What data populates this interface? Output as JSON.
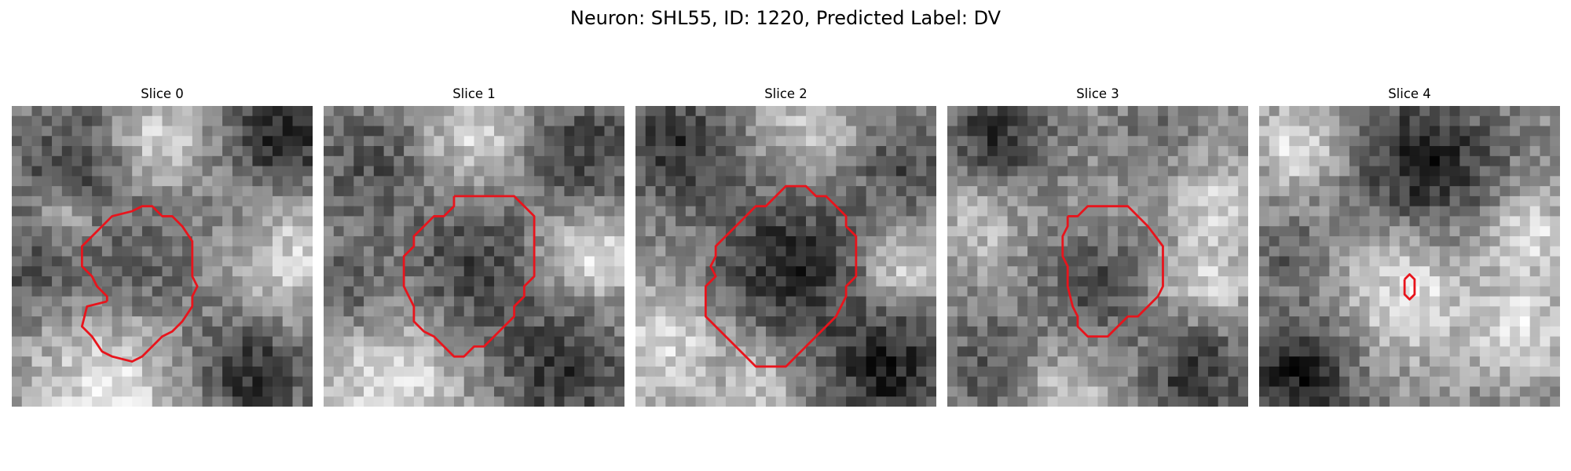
{
  "figure": {
    "title": "Neuron: SHL55, ID: 1220, Predicted Label: DV",
    "colormap": "gray",
    "contour_color": "#e8141c"
  },
  "panels": [
    {
      "title": "Slice 0",
      "contour": [
        [
          9.5,
          19.5
        ],
        [
          9.5,
          19
        ],
        [
          8.5,
          18
        ],
        [
          8,
          17
        ],
        [
          7,
          16
        ],
        [
          7,
          14
        ],
        [
          8,
          13
        ],
        [
          9,
          12
        ],
        [
          10,
          11
        ],
        [
          12,
          10.5
        ],
        [
          13,
          10
        ],
        [
          14,
          10
        ],
        [
          15,
          11
        ],
        [
          16,
          11
        ],
        [
          17,
          12
        ],
        [
          18,
          13.5
        ],
        [
          18,
          17
        ],
        [
          18.5,
          18
        ],
        [
          18,
          19
        ],
        [
          18,
          20
        ],
        [
          17,
          21.5
        ],
        [
          16,
          22.5
        ],
        [
          15,
          23
        ],
        [
          14,
          24
        ],
        [
          13,
          25
        ],
        [
          12,
          25.5
        ],
        [
          10,
          25
        ],
        [
          9,
          24.5
        ],
        [
          8,
          23
        ],
        [
          7,
          22
        ],
        [
          7.5,
          20
        ],
        [
          9.5,
          19.5
        ]
      ],
      "blobs": [
        {
          "cx": 6.5,
          "cy": 6,
          "r": 6,
          "v": 0.25
        },
        {
          "cx": 15,
          "cy": 3.5,
          "r": 4.5,
          "v": 0.82
        },
        {
          "cx": 27,
          "cy": 3.5,
          "r": 5,
          "v": 0.1
        },
        {
          "cx": 12.5,
          "cy": 17.5,
          "r": 6.5,
          "v": 0.3
        },
        {
          "cx": 5,
          "cy": 11.5,
          "r": 3,
          "v": 0.72
        },
        {
          "cx": 2,
          "cy": 17,
          "r": 5,
          "v": 0.3
        },
        {
          "cx": 10,
          "cy": 29,
          "r": 8.5,
          "v": 0.88
        },
        {
          "cx": 24,
          "cy": 26.5,
          "r": 5.5,
          "v": 0.18
        },
        {
          "cx": 28,
          "cy": 15,
          "r": 5.5,
          "v": 0.82
        },
        {
          "cx": 22,
          "cy": 10,
          "r": 3,
          "v": 0.5
        }
      ]
    },
    {
      "title": "Slice 1",
      "contour": [
        [
          13,
          9
        ],
        [
          13,
          10
        ],
        [
          12,
          11
        ],
        [
          11,
          11
        ],
        [
          10,
          12
        ],
        [
          9,
          13
        ],
        [
          9,
          14
        ],
        [
          8,
          15
        ],
        [
          8,
          18
        ],
        [
          8.5,
          19
        ],
        [
          9,
          20
        ],
        [
          9,
          21.5
        ],
        [
          10,
          22.5
        ],
        [
          11,
          23
        ],
        [
          12,
          24
        ],
        [
          13,
          25
        ],
        [
          14,
          25
        ],
        [
          15,
          24
        ],
        [
          16,
          24
        ],
        [
          17,
          23
        ],
        [
          18,
          22
        ],
        [
          19,
          21
        ],
        [
          19,
          20
        ],
        [
          20,
          19
        ],
        [
          20,
          18
        ],
        [
          21,
          17
        ],
        [
          21,
          11
        ],
        [
          20,
          10
        ],
        [
          19,
          9
        ],
        [
          13,
          9
        ]
      ],
      "blobs": [
        {
          "cx": 5,
          "cy": 6,
          "r": 6,
          "v": 0.32
        },
        {
          "cx": 16,
          "cy": 3,
          "r": 5,
          "v": 0.88
        },
        {
          "cx": 26,
          "cy": 5,
          "r": 6,
          "v": 0.25
        },
        {
          "cx": 15,
          "cy": 17,
          "r": 6.5,
          "v": 0.22
        },
        {
          "cx": 27,
          "cy": 15,
          "r": 4.5,
          "v": 0.88
        },
        {
          "cx": 7,
          "cy": 28,
          "r": 7,
          "v": 0.88
        },
        {
          "cx": 24,
          "cy": 26.5,
          "r": 6,
          "v": 0.2
        },
        {
          "cx": 2,
          "cy": 18,
          "r": 4,
          "v": 0.35
        }
      ]
    },
    {
      "title": "Slice 2",
      "contour": [
        [
          16,
          8
        ],
        [
          15,
          8
        ],
        [
          14,
          9
        ],
        [
          13,
          10
        ],
        [
          12,
          10
        ],
        [
          11,
          11
        ],
        [
          10,
          12
        ],
        [
          9,
          13
        ],
        [
          8,
          14
        ],
        [
          8,
          15
        ],
        [
          7.5,
          16
        ],
        [
          8,
          17
        ],
        [
          7,
          18
        ],
        [
          7,
          21
        ],
        [
          8,
          22
        ],
        [
          9,
          23
        ],
        [
          10,
          24
        ],
        [
          11,
          25
        ],
        [
          12,
          26
        ],
        [
          14,
          26
        ],
        [
          15,
          26
        ],
        [
          16,
          25
        ],
        [
          17,
          24
        ],
        [
          18,
          23
        ],
        [
          19,
          22
        ],
        [
          20,
          21
        ],
        [
          21,
          19
        ],
        [
          21,
          18
        ],
        [
          22,
          17
        ],
        [
          22,
          13
        ],
        [
          21,
          12
        ],
        [
          21,
          11
        ],
        [
          20,
          10
        ],
        [
          19,
          9
        ],
        [
          18,
          9
        ],
        [
          17,
          8
        ],
        [
          16,
          8
        ]
      ],
      "blobs": [
        {
          "cx": 4,
          "cy": 4,
          "r": 5.5,
          "v": 0.2
        },
        {
          "cx": 18,
          "cy": 2.5,
          "r": 4.5,
          "v": 0.8
        },
        {
          "cx": 27,
          "cy": 6,
          "r": 5,
          "v": 0.3
        },
        {
          "cx": 15,
          "cy": 16.5,
          "r": 7.5,
          "v": 0.15
        },
        {
          "cx": 3,
          "cy": 24,
          "r": 6,
          "v": 0.85
        },
        {
          "cx": 25,
          "cy": 26,
          "r": 6,
          "v": 0.12
        },
        {
          "cx": 27,
          "cy": 16,
          "r": 3.5,
          "v": 0.8
        },
        {
          "cx": 12,
          "cy": 28,
          "r": 4,
          "v": 0.75
        }
      ]
    },
    {
      "title": "Slice 3",
      "contour": [
        [
          12,
          11
        ],
        [
          12,
          12
        ],
        [
          11.5,
          13
        ],
        [
          11.5,
          15
        ],
        [
          12,
          16
        ],
        [
          12,
          18
        ],
        [
          12.5,
          20
        ],
        [
          13,
          21
        ],
        [
          13,
          22
        ],
        [
          14,
          23
        ],
        [
          16,
          23
        ],
        [
          17,
          22
        ],
        [
          18,
          21
        ],
        [
          19,
          21
        ],
        [
          20,
          20
        ],
        [
          21,
          19
        ],
        [
          21.5,
          18
        ],
        [
          21.5,
          14
        ],
        [
          20,
          12
        ],
        [
          19,
          11
        ],
        [
          18,
          10
        ],
        [
          14,
          10
        ],
        [
          13,
          11
        ],
        [
          12,
          11
        ]
      ],
      "blobs": [
        {
          "cx": 5,
          "cy": 3,
          "r": 5,
          "v": 0.2
        },
        {
          "cx": 21,
          "cy": 2,
          "r": 4,
          "v": 0.45
        },
        {
          "cx": 27,
          "cy": 10,
          "r": 4,
          "v": 0.85
        },
        {
          "cx": 3,
          "cy": 12,
          "r": 4,
          "v": 0.75
        },
        {
          "cx": 14.5,
          "cy": 18,
          "r": 5,
          "v": 0.3
        },
        {
          "cx": 4,
          "cy": 26,
          "r": 5,
          "v": 0.35
        },
        {
          "cx": 25,
          "cy": 27,
          "r": 5,
          "v": 0.2
        },
        {
          "cx": 12,
          "cy": 29,
          "r": 4,
          "v": 0.75
        },
        {
          "cx": 26,
          "cy": 17,
          "r": 4,
          "v": 0.82
        }
      ]
    },
    {
      "title": "Slice 4",
      "contour": [
        [
          14.5,
          17.3
        ],
        [
          15,
          16.8
        ],
        [
          15.5,
          17.3
        ],
        [
          15.5,
          18.8
        ],
        [
          15,
          19.3
        ],
        [
          14.5,
          18.8
        ],
        [
          14.5,
          17.3
        ]
      ],
      "blobs": [
        {
          "cx": 16.5,
          "cy": 6,
          "r": 7,
          "v": 0.12
        },
        {
          "cx": 4,
          "cy": 4,
          "r": 4,
          "v": 0.88
        },
        {
          "cx": 4,
          "cy": 27,
          "r": 6,
          "v": 0.1
        },
        {
          "cx": 3,
          "cy": 14.5,
          "r": 3,
          "v": 0.35
        },
        {
          "cx": 15,
          "cy": 19,
          "r": 6,
          "v": 0.88
        },
        {
          "cx": 26,
          "cy": 22,
          "r": 5,
          "v": 0.88
        },
        {
          "cx": 27,
          "cy": 13,
          "r": 4,
          "v": 0.88
        }
      ]
    }
  ]
}
